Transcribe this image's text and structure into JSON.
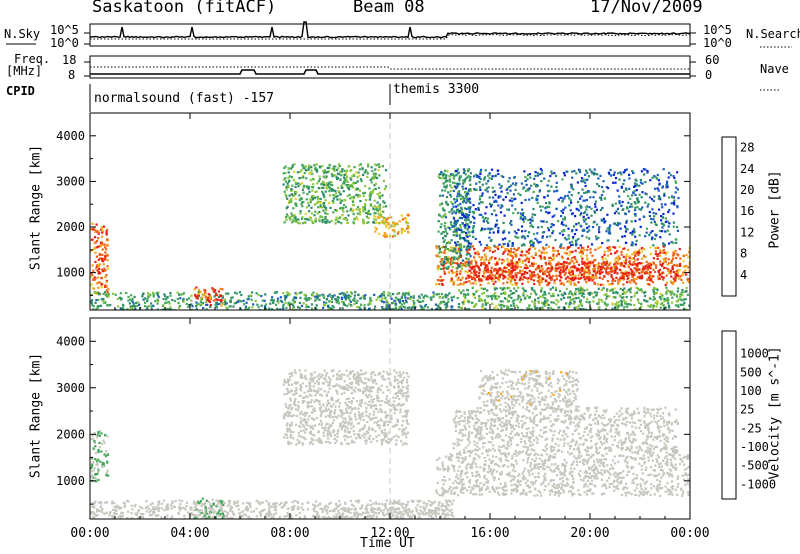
{
  "header": {
    "station": "Saskatoon (fitACF)",
    "beam": "Beam 08",
    "date": "17/Nov/2009"
  },
  "strips": {
    "nsky_label": "N.Sky",
    "nsky_ticks": [
      "10^5",
      "10^0"
    ],
    "nsearch_label": "N.Search",
    "freq_label_1": "Freq.",
    "freq_label_2": "[MHz]",
    "freq_ticks": [
      "18",
      "8"
    ],
    "nave_label": "Nave",
    "nave_ticks": [
      "60",
      "0"
    ],
    "cpid_label": "CPID",
    "cpid_1": "normalsound (fast) -157",
    "cpid_2": "themis 3300"
  },
  "colors": {
    "power": [
      "#0a22d8",
      "#1a5cc0",
      "#2a8a6a",
      "#45a85a",
      "#8cc83c",
      "#e8d22a",
      "#f2a21c",
      "#ee6018",
      "#e81f12"
    ],
    "velocity": [
      "#e81f12",
      "#ee6018",
      "#f2a21c",
      "#c8c8c0",
      "#c8c8c0",
      "#45a85a",
      "#2a8a6a",
      "#1a5cc0",
      "#0a22d8"
    ],
    "gray_scatter": "#c6c6be"
  },
  "chart_data": [
    {
      "type": "heatmap",
      "title": "",
      "xlabel": "",
      "ylabel": "Slant Range [km]",
      "x_ticks": [
        "00:00",
        "04:00",
        "08:00",
        "12:00",
        "16:00",
        "20:00",
        "00:00"
      ],
      "xlim_hours": [
        0,
        24
      ],
      "y_ticks": [
        1000,
        2000,
        3000,
        4000
      ],
      "ylim": [
        180,
        4500
      ],
      "colorbar_label": "Power [dB]",
      "colorbar_ticks": [
        4,
        8,
        12,
        16,
        20,
        24,
        28
      ],
      "colorbar_range": [
        0,
        30
      ],
      "regions": [
        {
          "t0": 0.0,
          "t1": 0.7,
          "r0": 550,
          "r1": 2100,
          "level": 24
        },
        {
          "t0": 0.3,
          "t1": 0.6,
          "r0": 1000,
          "r1": 1400,
          "level": 29
        },
        {
          "t0": 0.0,
          "t1": 14.5,
          "r0": 200,
          "r1": 600,
          "level": 10
        },
        {
          "t0": 4.1,
          "t1": 5.3,
          "r0": 300,
          "r1": 700,
          "level": 26
        },
        {
          "t0": 7.7,
          "t1": 11.8,
          "r0": 2100,
          "r1": 3400,
          "level": 12
        },
        {
          "t0": 11.3,
          "t1": 12.7,
          "r0": 1800,
          "r1": 2300,
          "level": 20
        },
        {
          "t0": 13.8,
          "t1": 24.0,
          "r0": 750,
          "r1": 1600,
          "level": 24
        },
        {
          "t0": 15.0,
          "t1": 23.5,
          "r0": 850,
          "r1": 1250,
          "level": 29
        },
        {
          "t0": 13.9,
          "t1": 15.2,
          "r0": 1100,
          "r1": 3300,
          "level": 10
        },
        {
          "t0": 14.5,
          "t1": 23.5,
          "r0": 1600,
          "r1": 3300,
          "level": 6
        },
        {
          "t0": 14.5,
          "t1": 24.0,
          "r0": 200,
          "r1": 700,
          "level": 12
        }
      ]
    },
    {
      "type": "heatmap",
      "title": "",
      "xlabel": "Time UT",
      "ylabel": "Slant Range [km]",
      "x_ticks": [
        "00:00",
        "04:00",
        "08:00",
        "12:00",
        "16:00",
        "20:00",
        "00:00"
      ],
      "xlim_hours": [
        0,
        24
      ],
      "y_ticks": [
        1000,
        2000,
        3000,
        4000
      ],
      "ylim": [
        180,
        4500
      ],
      "colorbar_label": "Velocity [m s^-1]",
      "colorbar_ticks": [
        1000,
        500,
        100,
        25,
        -25,
        -100,
        -500,
        -1000
      ],
      "colorbar_range": [
        -1250,
        1250
      ],
      "regions": [
        {
          "t0": 0.0,
          "t1": 0.7,
          "r0": 1000,
          "r1": 2100,
          "level": 150
        },
        {
          "t0": 0.0,
          "t1": 14.5,
          "r0": 200,
          "r1": 600,
          "level": 0
        },
        {
          "t0": 4.1,
          "t1": 5.3,
          "r0": 200,
          "r1": 650,
          "level": 150
        },
        {
          "t0": 9.0,
          "t1": 14.3,
          "r0": 200,
          "r1": 450,
          "level": -150
        },
        {
          "t0": 7.7,
          "t1": 12.7,
          "r0": 1800,
          "r1": 3400,
          "level": 0
        },
        {
          "t0": 13.8,
          "t1": 24.0,
          "r0": 700,
          "r1": 1600,
          "level": 0
        },
        {
          "t0": 15.5,
          "t1": 19.5,
          "r0": 2600,
          "r1": 3400,
          "level": -300
        },
        {
          "t0": 14.5,
          "t1": 23.5,
          "r0": 1600,
          "r1": 2600,
          "level": 0
        }
      ]
    }
  ]
}
